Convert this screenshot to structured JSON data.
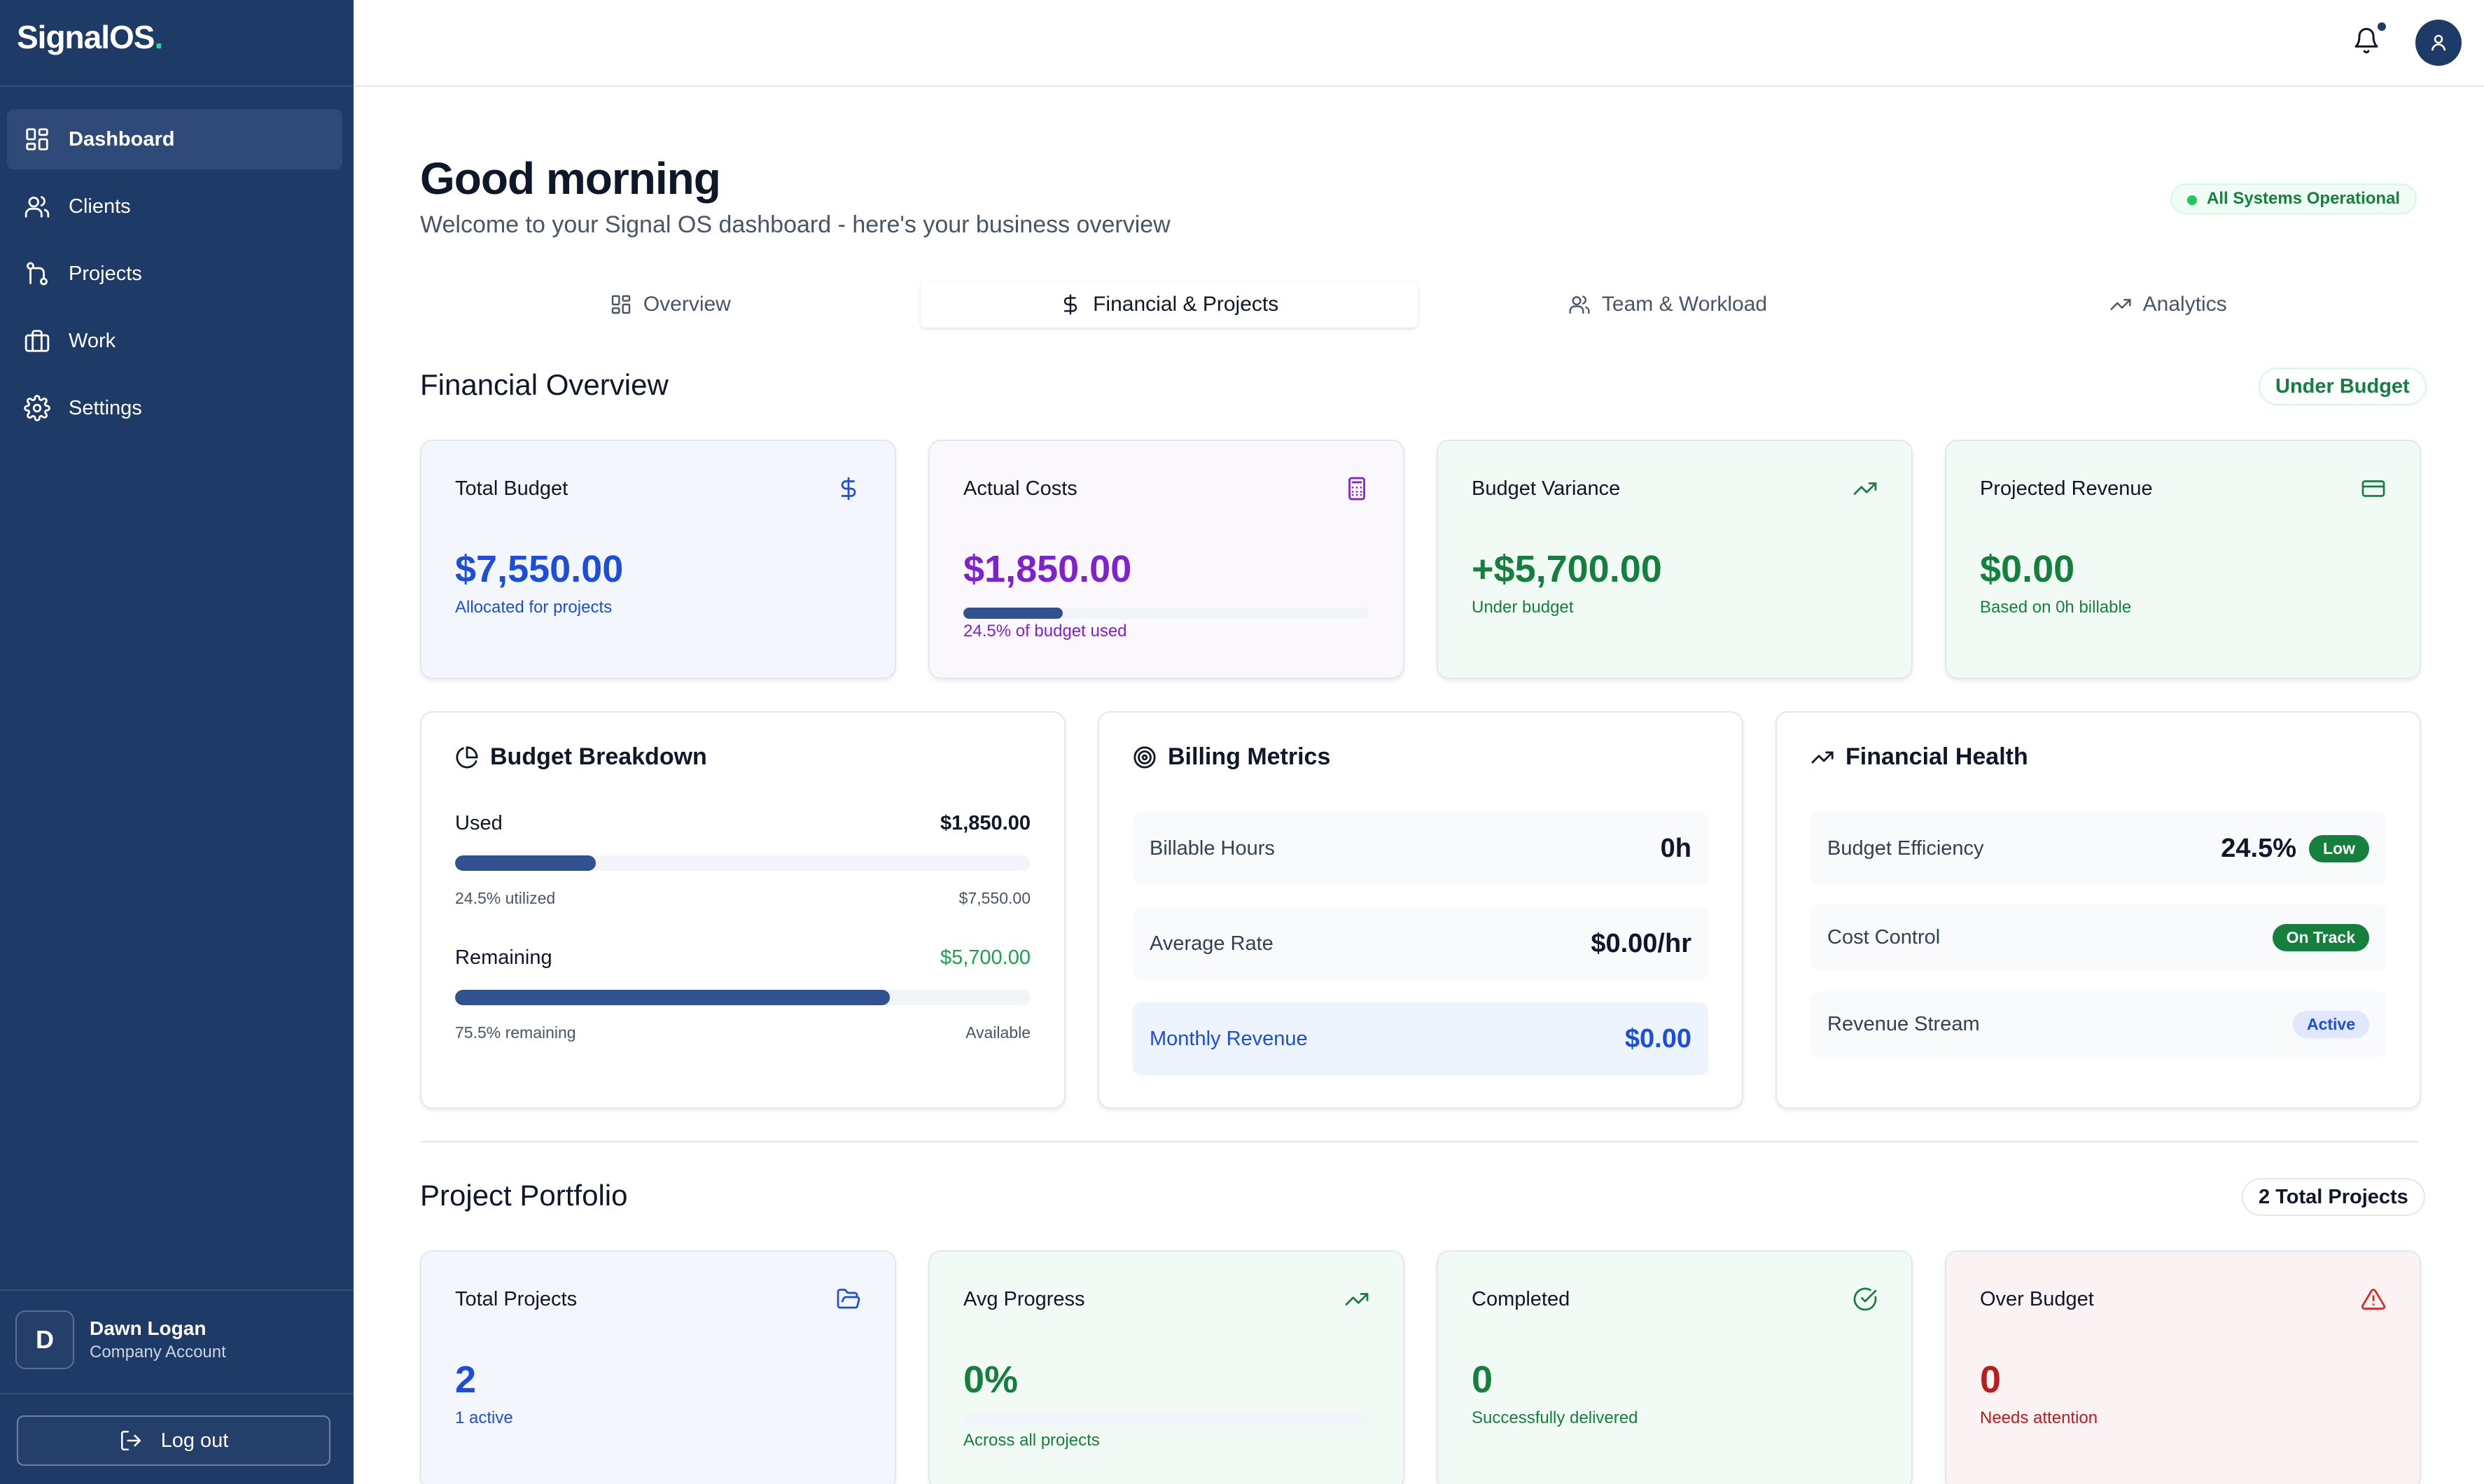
{
  "app": {
    "logo": "SignalOS",
    "logo_dot": "."
  },
  "sidebar": {
    "items": [
      {
        "label": "Dashboard",
        "icon": "dashboard-grid-icon"
      },
      {
        "label": "Clients",
        "icon": "users-icon"
      },
      {
        "label": "Projects",
        "icon": "git-branch-icon"
      },
      {
        "label": "Work",
        "icon": "briefcase-icon"
      },
      {
        "label": "Settings",
        "icon": "gear-icon"
      }
    ],
    "user": {
      "initial": "D",
      "name": "Dawn Logan",
      "role": "Company Account"
    },
    "logout": "Log out"
  },
  "header": {
    "title": "Good morning",
    "subtitle": "Welcome to your Signal OS dashboard - here's your business overview",
    "status": "All Systems Operational"
  },
  "tabs": [
    {
      "label": "Overview"
    },
    {
      "label": "Financial & Projects"
    },
    {
      "label": "Team & Workload"
    },
    {
      "label": "Analytics"
    }
  ],
  "financial": {
    "title": "Financial Overview",
    "badge": "Under Budget",
    "cards": [
      {
        "title": "Total Budget",
        "value": "$7,550.00",
        "sub": "Allocated for projects"
      },
      {
        "title": "Actual Costs",
        "value": "$1,850.00",
        "sub": "24.5% of budget used",
        "progress": 0.245
      },
      {
        "title": "Budget Variance",
        "value": "+$5,700.00",
        "sub": "Under budget"
      },
      {
        "title": "Projected Revenue",
        "value": "$0.00",
        "sub": "Based on 0h billable"
      }
    ]
  },
  "breakdown": {
    "title": "Budget Breakdown",
    "used_label": "Used",
    "used_value": "$1,850.00",
    "used_pct_text": "24.5% utilized",
    "used_total": "$7,550.00",
    "used_fraction": 0.245,
    "remaining_label": "Remaining",
    "remaining_value": "$5,700.00",
    "remaining_pct_text": "75.5% remaining",
    "remaining_note": "Available",
    "remaining_fraction": 0.755
  },
  "billing": {
    "title": "Billing Metrics",
    "rows": [
      {
        "label": "Billable Hours",
        "value": "0h"
      },
      {
        "label": "Average Rate",
        "value": "$0.00/hr"
      },
      {
        "label": "Monthly Revenue",
        "value": "$0.00"
      }
    ]
  },
  "health": {
    "title": "Financial Health",
    "rows": [
      {
        "label": "Budget Efficiency",
        "value": "24.5%",
        "badge": "Low"
      },
      {
        "label": "Cost Control",
        "badge": "On Track"
      },
      {
        "label": "Revenue Stream",
        "badge": "Active"
      }
    ]
  },
  "portfolio": {
    "title": "Project Portfolio",
    "badge": "2 Total Projects",
    "cards": [
      {
        "title": "Total Projects",
        "value": "2",
        "sub": "1 active"
      },
      {
        "title": "Avg Progress",
        "value": "0%",
        "sub": "Across all projects",
        "progress": 0
      },
      {
        "title": "Completed",
        "value": "0",
        "sub": "Successfully delivered"
      },
      {
        "title": "Over Budget",
        "value": "0",
        "sub": "Needs attention"
      }
    ]
  },
  "colors": {
    "sidebar": "#1e3a66",
    "blue": "#1d4ed8",
    "purple": "#7e22ce",
    "green": "#15803d",
    "red": "#b91c1c",
    "bar": "#30528e"
  }
}
